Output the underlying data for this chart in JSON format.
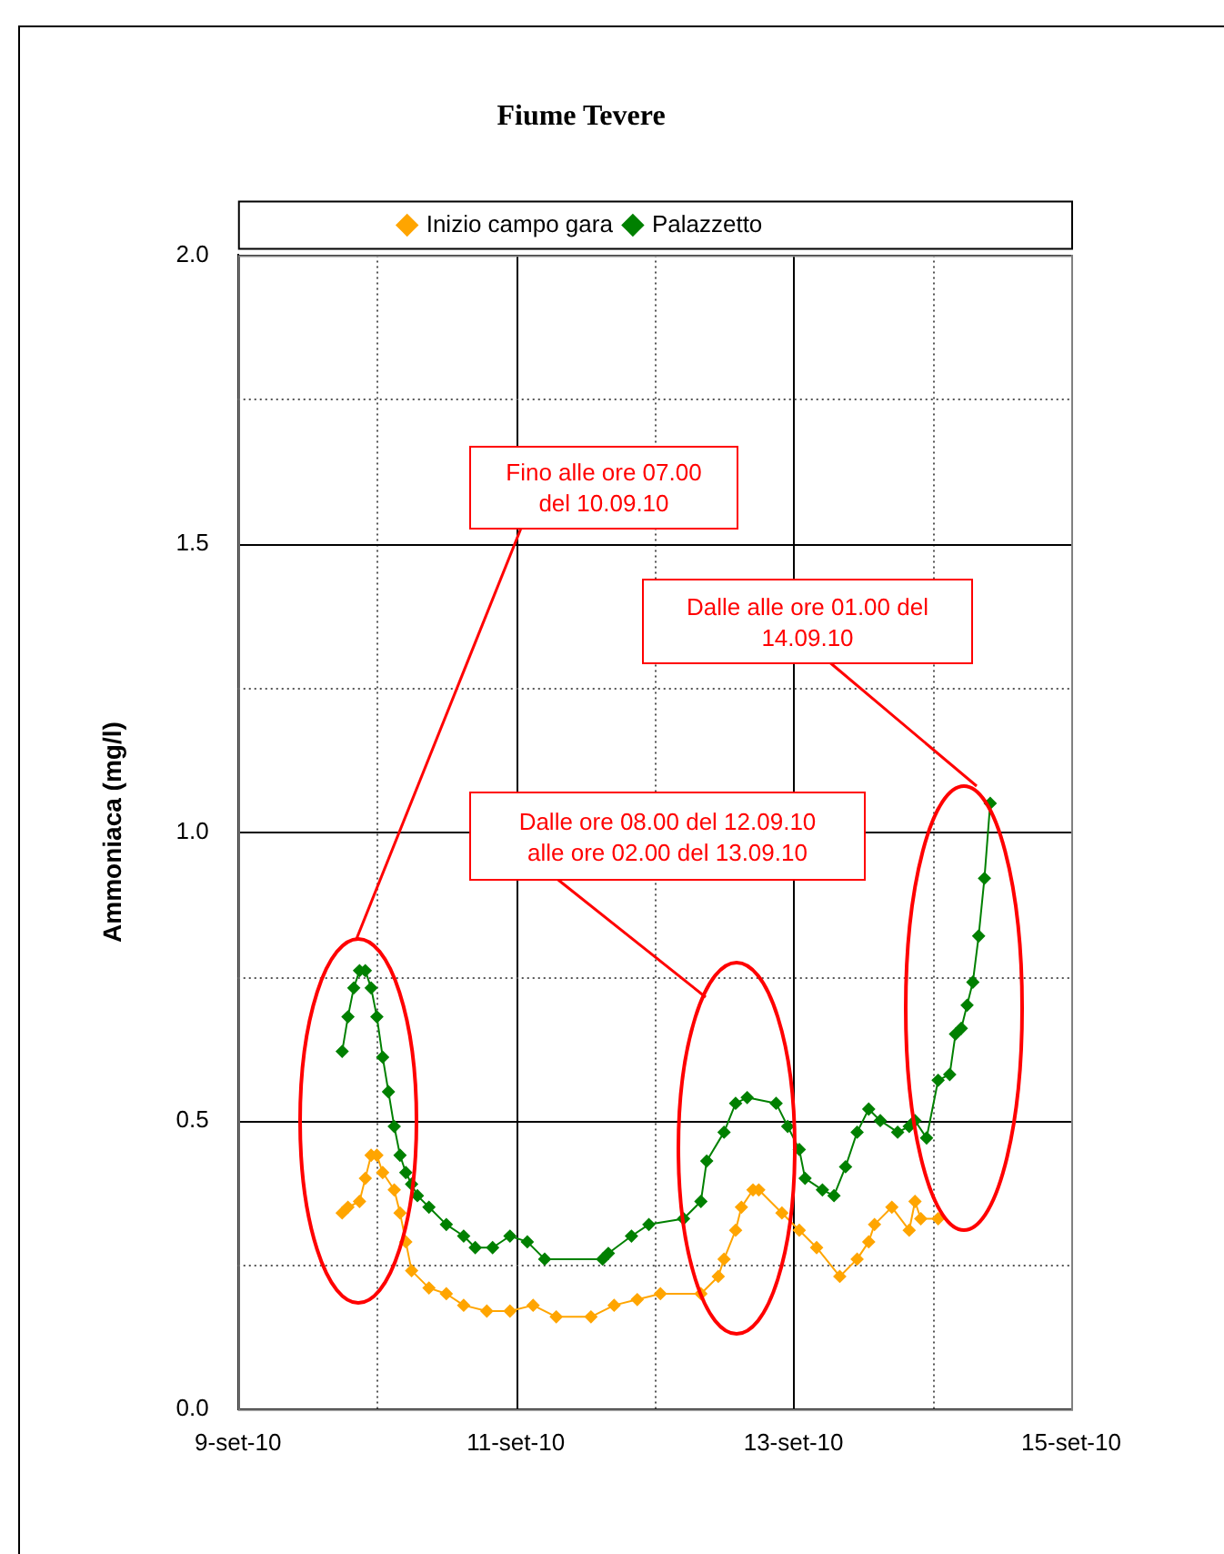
{
  "chart_data": {
    "type": "line",
    "title": "Fiume Tevere",
    "ylabel": "Ammoniaca (mg/l)",
    "xlim": [
      "--09-09",
      "--09-15"
    ],
    "xticks": [
      {
        "value": "--09-09",
        "label": "9-set-10"
      },
      {
        "value": "--09-10",
        "label": null
      },
      {
        "value": "--09-11",
        "label": "11-set-10"
      },
      {
        "value": "--09-12",
        "label": null
      },
      {
        "value": "--09-13",
        "label": "13-set-10"
      },
      {
        "value": "--09-14",
        "label": null
      },
      {
        "value": "--09-15",
        "label": "15-set-10"
      }
    ],
    "ylim": [
      0,
      2
    ],
    "yticks": [
      {
        "value": 0,
        "label": "0.0"
      },
      {
        "value": 0.25,
        "label": null
      },
      {
        "value": 0.5,
        "label": "0.5"
      },
      {
        "value": 0.75,
        "label": null
      },
      {
        "value": 1,
        "label": "1.0"
      },
      {
        "value": 1.25,
        "label": null
      },
      {
        "value": 1.5,
        "label": "1.5"
      },
      {
        "value": 1.75,
        "label": null
      },
      {
        "value": 2,
        "label": "2.0"
      }
    ],
    "grid": true,
    "legend": "top",
    "marker": "diamond",
    "line_style": "solid",
    "series": [
      {
        "name": "Inizio campo gara",
        "color": "#ffa500",
        "x": [
          "--09-09T18:00",
          "--09-09T19:00",
          "--09-09T21:00",
          "--09-09T22:00",
          "--09-09T23:00",
          "--09-10T00:00",
          "--09-10T01:00",
          "--09-10T03:00",
          "--09-10T04:00",
          "--09-10T05:00",
          "--09-10T06:00",
          "--09-10T09:00",
          "--09-10T12:00",
          "--09-10T15:00",
          "--09-10T19:00",
          "--09-10T23:00",
          "--09-11T03:00",
          "--09-11T07:00",
          "--09-11T13:00",
          "--09-11T17:00",
          "--09-11T21:00",
          "--09-12T01:00",
          "--09-12T08:00",
          "--09-12T11:00",
          "--09-12T12:00",
          "--09-12T14:00",
          "--09-12T15:00",
          "--09-12T17:00",
          "--09-12T18:00",
          "--09-12T22:00",
          "--09-13T01:00",
          "--09-13T04:00",
          "--09-13T08:00",
          "--09-13T11:00",
          "--09-13T13:00",
          "--09-13T14:00",
          "--09-13T17:00",
          "--09-13T20:00",
          "--09-13T21:00",
          "--09-13T22:00",
          "--09-14T01:00"
        ],
        "values": [
          0.34,
          0.35,
          0.36,
          0.4,
          0.44,
          0.44,
          0.41,
          0.38,
          0.34,
          0.29,
          0.24,
          0.21,
          0.2,
          0.18,
          0.17,
          0.17,
          0.18,
          0.16,
          0.16,
          0.18,
          0.19,
          0.2,
          0.2,
          0.23,
          0.26,
          0.31,
          0.35,
          0.38,
          0.38,
          0.34,
          0.31,
          0.28,
          0.23,
          0.26,
          0.29,
          0.32,
          0.35,
          0.31,
          0.36,
          0.33,
          0.33
        ]
      },
      {
        "name": "Palazzetto",
        "color": "#008000",
        "x": [
          "--09-09T18:00",
          "--09-09T19:00",
          "--09-09T20:00",
          "--09-09T21:00",
          "--09-09T22:00",
          "--09-09T23:00",
          "--09-10T00:00",
          "--09-10T01:00",
          "--09-10T02:00",
          "--09-10T03:00",
          "--09-10T04:00",
          "--09-10T05:00",
          "--09-10T06:00",
          "--09-10T07:00",
          "--09-10T09:00",
          "--09-10T12:00",
          "--09-10T15:00",
          "--09-10T17:00",
          "--09-10T20:00",
          "--09-10T23:00",
          "--09-11T02:00",
          "--09-11T05:00",
          "--09-11T15:00",
          "--09-11T16:00",
          "--09-11T20:00",
          "--09-11T23:00",
          "--09-12T05:00",
          "--09-12T08:00",
          "--09-12T09:00",
          "--09-12T12:00",
          "--09-12T14:00",
          "--09-12T16:00",
          "--09-12T21:00",
          "--09-12T23:00",
          "--09-13T01:00",
          "--09-13T02:00",
          "--09-13T05:00",
          "--09-13T07:00",
          "--09-13T09:00",
          "--09-13T11:00",
          "--09-13T13:00",
          "--09-13T15:00",
          "--09-13T18:00",
          "--09-13T20:00",
          "--09-13T21:00",
          "--09-13T23:00",
          "--09-14T01:00",
          "--09-14T03:00",
          "--09-14T04:00",
          "--09-14T05:00",
          "--09-14T06:00",
          "--09-14T07:00",
          "--09-14T08:00",
          "--09-14T09:00",
          "--09-14T10:00"
        ],
        "values": [
          0.62,
          0.68,
          0.73,
          0.76,
          0.76,
          0.73,
          0.68,
          0.61,
          0.55,
          0.49,
          0.44,
          0.41,
          0.39,
          0.37,
          0.35,
          0.32,
          0.3,
          0.28,
          0.28,
          0.3,
          0.29,
          0.26,
          0.26,
          0.27,
          0.3,
          0.32,
          0.33,
          0.36,
          0.43,
          0.48,
          0.53,
          0.54,
          0.53,
          0.49,
          0.45,
          0.4,
          0.38,
          0.37,
          0.42,
          0.48,
          0.52,
          0.5,
          0.48,
          0.49,
          0.5,
          0.47,
          0.57,
          0.58,
          0.65,
          0.66,
          0.7,
          0.74,
          0.82,
          0.92,
          1.05
        ]
      }
    ],
    "annotations": [
      "Fino alle ore 07.00\ndel 10.09.10",
      "Dalle ore 08.00 del 12.09.10\nalle ore 02.00 del 13.09.10",
      "Dalle alle ore 01.00 del\n14.09.10"
    ]
  }
}
